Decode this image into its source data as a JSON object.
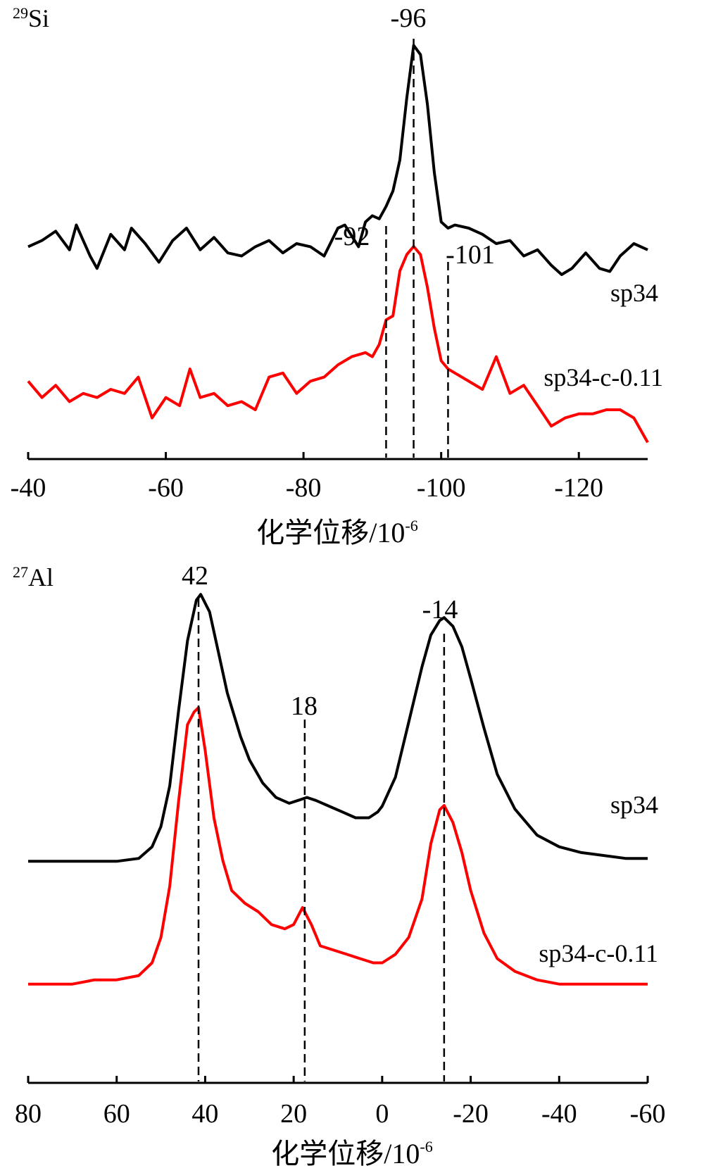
{
  "chart_data": [
    {
      "type": "line",
      "nucleus_mass": "29",
      "nucleus_symbol": "Si",
      "xlabel": "化学位移/10",
      "xlabel_exponent": "-6",
      "x_reversed": true,
      "xlim": [
        -40,
        -130
      ],
      "ylim": [
        0,
        1
      ],
      "x_ticks": [
        -40,
        -60,
        -80,
        -100,
        -120
      ],
      "x_tick_labels": [
        "-40",
        "-60",
        "-80",
        "-100",
        "-120"
      ],
      "peak_markers": [
        {
          "x": -92,
          "label": "-92"
        },
        {
          "x": -96,
          "label": "-96"
        },
        {
          "x": -101,
          "label": "-101"
        }
      ],
      "series": [
        {
          "name": "sp34",
          "color": "#000000",
          "x": [
            -40,
            -42,
            -44,
            -46,
            -47,
            -49,
            -50,
            -52,
            -54,
            -55,
            -57,
            -59,
            -61,
            -63,
            -65,
            -67,
            -69,
            -71,
            -73,
            -75,
            -77,
            -79,
            -81,
            -83,
            -85,
            -86,
            -88,
            -89,
            -90,
            -91,
            -92,
            -93,
            -94,
            -95,
            -96,
            -97,
            -98,
            -99,
            -100,
            -101,
            -102,
            -104,
            -106,
            -108,
            -110,
            -112,
            -114,
            -116,
            -117.5,
            -119,
            -121,
            -123,
            -124.5,
            -126,
            -128,
            -130
          ],
          "values": [
            0.34,
            0.36,
            0.39,
            0.33,
            0.41,
            0.31,
            0.27,
            0.38,
            0.33,
            0.4,
            0.35,
            0.29,
            0.36,
            0.4,
            0.33,
            0.37,
            0.32,
            0.31,
            0.34,
            0.36,
            0.32,
            0.35,
            0.34,
            0.31,
            0.4,
            0.41,
            0.34,
            0.42,
            0.44,
            0.43,
            0.47,
            0.52,
            0.62,
            0.82,
            0.99,
            0.96,
            0.8,
            0.58,
            0.42,
            0.4,
            0.41,
            0.4,
            0.38,
            0.35,
            0.36,
            0.31,
            0.33,
            0.28,
            0.25,
            0.27,
            0.32,
            0.27,
            0.26,
            0.31,
            0.35,
            0.33
          ]
        },
        {
          "name": "sp34-c-0.11",
          "color": "#ff0000",
          "x": [
            -40,
            -42,
            -44,
            -46,
            -48,
            -50,
            -52,
            -54,
            -56,
            -58,
            -60,
            -62,
            -63.5,
            -65,
            -67,
            -69,
            -71,
            -73,
            -75,
            -77,
            -79,
            -81,
            -83,
            -85,
            -87,
            -89,
            -90,
            -91,
            -92,
            -93,
            -94,
            -95,
            -96,
            -97,
            -98,
            -99,
            -100,
            -101,
            -102,
            -104,
            -106,
            -108,
            -110,
            -112,
            -114,
            -116,
            -118,
            -120,
            -122,
            -124,
            -126,
            -128,
            -130
          ],
          "values": [
            0.17,
            0.13,
            0.16,
            0.12,
            0.14,
            0.13,
            0.15,
            0.14,
            0.18,
            0.08,
            0.13,
            0.11,
            0.2,
            0.13,
            0.14,
            0.11,
            0.12,
            0.1,
            0.18,
            0.19,
            0.14,
            0.17,
            0.18,
            0.21,
            0.23,
            0.24,
            0.23,
            0.26,
            0.32,
            0.33,
            0.44,
            0.48,
            0.5,
            0.48,
            0.4,
            0.3,
            0.22,
            0.2,
            0.19,
            0.17,
            0.15,
            0.23,
            0.14,
            0.16,
            0.11,
            0.06,
            0.08,
            0.09,
            0.09,
            0.1,
            0.1,
            0.08,
            0.02
          ]
        }
      ]
    },
    {
      "type": "line",
      "nucleus_mass": "27",
      "nucleus_symbol": "Al",
      "xlabel": "化学位移/10",
      "xlabel_exponent": "-6",
      "x_reversed": true,
      "xlim": [
        80,
        -60
      ],
      "ylim": [
        0,
        1
      ],
      "x_ticks": [
        80,
        60,
        40,
        20,
        0,
        -20,
        -40,
        -60
      ],
      "x_tick_labels": [
        "80",
        "60",
        "40",
        "20",
        "0",
        "-20",
        "-40",
        "-60"
      ],
      "peak_markers": [
        {
          "x": 41.5,
          "label": "42"
        },
        {
          "x": 17.5,
          "label": "18"
        },
        {
          "x": -14,
          "label": "-14"
        }
      ],
      "series": [
        {
          "name": "sp34",
          "color": "#000000",
          "x": [
            80,
            75,
            70,
            65,
            60,
            55,
            52,
            50,
            48,
            46,
            44,
            42,
            41,
            39,
            37,
            35,
            32,
            30,
            27,
            24,
            21,
            19,
            17,
            15,
            12,
            9,
            6,
            3,
            1,
            0,
            -3,
            -6,
            -9,
            -11,
            -13,
            -14,
            -16,
            -18,
            -20,
            -23,
            -26,
            -30,
            -35,
            -40,
            -45,
            -50,
            -55,
            -60
          ],
          "values": [
            0.06,
            0.06,
            0.06,
            0.06,
            0.06,
            0.07,
            0.11,
            0.18,
            0.32,
            0.58,
            0.82,
            0.96,
            0.98,
            0.92,
            0.78,
            0.64,
            0.49,
            0.41,
            0.33,
            0.28,
            0.26,
            0.27,
            0.28,
            0.27,
            0.25,
            0.23,
            0.21,
            0.21,
            0.23,
            0.25,
            0.35,
            0.54,
            0.73,
            0.84,
            0.89,
            0.9,
            0.87,
            0.8,
            0.69,
            0.52,
            0.36,
            0.24,
            0.15,
            0.11,
            0.09,
            0.08,
            0.07,
            0.07
          ]
        },
        {
          "name": "sp34-c-0.11",
          "color": "#ff0000",
          "x": [
            80,
            75,
            70,
            65,
            60,
            55,
            52,
            50,
            48,
            46,
            44,
            42.5,
            41.5,
            40,
            38,
            36,
            34,
            31,
            28,
            25,
            22,
            20,
            18,
            16,
            14,
            11,
            8,
            5,
            2,
            0,
            -3,
            -6,
            -9,
            -11,
            -13,
            -14,
            -16,
            -18,
            -20,
            -23,
            -26,
            -30,
            -35,
            -40,
            -45,
            -50,
            -55,
            -60
          ],
          "values": [
            0.07,
            0.07,
            0.07,
            0.08,
            0.08,
            0.09,
            0.12,
            0.18,
            0.3,
            0.5,
            0.68,
            0.71,
            0.72,
            0.62,
            0.46,
            0.36,
            0.29,
            0.26,
            0.24,
            0.21,
            0.2,
            0.21,
            0.25,
            0.21,
            0.16,
            0.15,
            0.14,
            0.13,
            0.12,
            0.12,
            0.14,
            0.18,
            0.27,
            0.4,
            0.48,
            0.49,
            0.45,
            0.38,
            0.29,
            0.19,
            0.13,
            0.1,
            0.08,
            0.07,
            0.07,
            0.07,
            0.07,
            0.07
          ]
        }
      ]
    }
  ]
}
